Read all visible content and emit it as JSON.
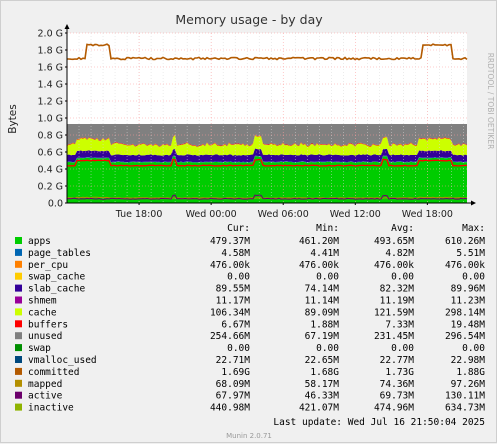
{
  "chart_data": {
    "type": "area",
    "title": "Memory usage - by day",
    "ylabel": "Bytes",
    "ylim": [
      0,
      2.0
    ],
    "yticks": [
      "0.0",
      "0.2 G",
      "0.4 G",
      "0.6 G",
      "0.8 G",
      "1.0 G",
      "1.2 G",
      "1.4 G",
      "1.6 G",
      "1.8 G",
      "2.0 G"
    ],
    "xticks": [
      "Tue 18:00",
      "Wed 00:00",
      "Wed 06:00",
      "Wed 12:00",
      "Wed 18:00"
    ],
    "xtick_hours": [
      6,
      12,
      18,
      24,
      30
    ],
    "x_range_hours": [
      0,
      33.3
    ],
    "grid": true,
    "watermark": "RRDTOOL / TOBI OETIKER",
    "stack_approx_values_G": {
      "apps": 0.48,
      "page_tables": 0.005,
      "per_cpu": 0.0005,
      "slab_cache": 0.08,
      "cache": 0.12,
      "buffers": 0.007,
      "unused": 0.23
    },
    "committed_approx_G": {
      "normal": 1.7,
      "peaks": [
        [
          1.5,
          3.5,
          1.87
        ],
        [
          29.5,
          32.0,
          1.87
        ]
      ]
    },
    "legend_header": [
      "Cur:",
      "Min:",
      "Avg:",
      "Max:"
    ],
    "series": [
      {
        "name": "apps",
        "color": "#00cc00",
        "cur": "479.37M",
        "min": "461.20M",
        "avg": "493.65M",
        "max": "610.26M"
      },
      {
        "name": "page_tables",
        "color": "#0066b3",
        "cur": "4.58M",
        "min": "4.41M",
        "avg": "4.82M",
        "max": "5.51M"
      },
      {
        "name": "per_cpu",
        "color": "#ff8000",
        "cur": "476.00k",
        "min": "476.00k",
        "avg": "476.00k",
        "max": "476.00k"
      },
      {
        "name": "swap_cache",
        "color": "#ffcc00",
        "cur": "0.00",
        "min": "0.00",
        "avg": "0.00",
        "max": "0.00"
      },
      {
        "name": "slab_cache",
        "color": "#330099",
        "cur": "89.55M",
        "min": "74.14M",
        "avg": "82.32M",
        "max": "89.96M"
      },
      {
        "name": "shmem",
        "color": "#990099",
        "cur": "11.17M",
        "min": "11.14M",
        "avg": "11.19M",
        "max": "11.23M"
      },
      {
        "name": "cache",
        "color": "#ccff00",
        "cur": "106.34M",
        "min": "89.09M",
        "avg": "121.59M",
        "max": "298.14M"
      },
      {
        "name": "buffers",
        "color": "#ff0000",
        "cur": "6.67M",
        "min": "1.88M",
        "avg": "7.33M",
        "max": "19.48M"
      },
      {
        "name": "unused",
        "color": "#808080",
        "cur": "254.66M",
        "min": "67.19M",
        "avg": "231.45M",
        "max": "296.54M"
      },
      {
        "name": "swap",
        "color": "#008f00",
        "cur": "0.00",
        "min": "0.00",
        "avg": "0.00",
        "max": "0.00"
      },
      {
        "name": "vmalloc_used",
        "color": "#00487d",
        "cur": "22.71M",
        "min": "22.65M",
        "avg": "22.77M",
        "max": "22.98M"
      },
      {
        "name": "committed",
        "color": "#b35a00",
        "cur": "1.69G",
        "min": "1.68G",
        "avg": "1.73G",
        "max": "1.88G"
      },
      {
        "name": "mapped",
        "color": "#b38f00",
        "cur": "68.09M",
        "min": "58.17M",
        "avg": "74.36M",
        "max": "97.26M"
      },
      {
        "name": "active",
        "color": "#6b006b",
        "cur": "67.97M",
        "min": "46.33M",
        "avg": "69.73M",
        "max": "130.11M"
      },
      {
        "name": "inactive",
        "color": "#8fb300",
        "cur": "440.98M",
        "min": "421.07M",
        "avg": "474.96M",
        "max": "634.73M"
      }
    ],
    "last_update": "Last update:  Wed Jul 16 21:50:04 2025",
    "footer": "Munin 2.0.71"
  }
}
